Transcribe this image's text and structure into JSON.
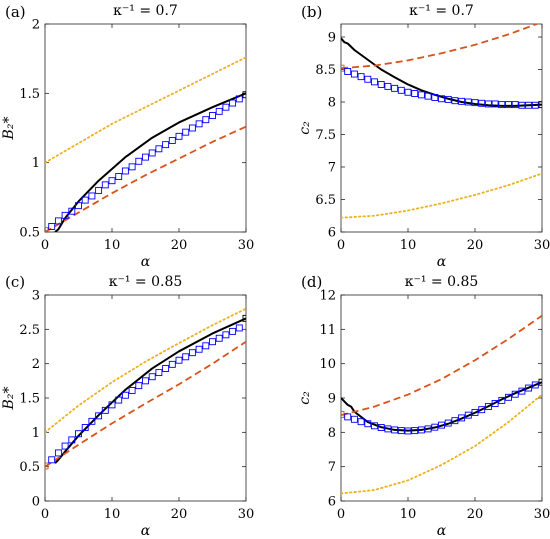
{
  "chart_data": [
    {
      "type": "line",
      "panel_label": "(a)",
      "title": "κ⁻¹ = 0.7",
      "xlabel": "α",
      "ylabel": "B₂*",
      "xlim": [
        0,
        30
      ],
      "ylim": [
        0.5,
        2
      ],
      "xticks": [
        0,
        10,
        20,
        30
      ],
      "yticks": [
        0.5,
        1,
        1.5,
        2
      ],
      "grid": false,
      "series": [
        {
          "style": "solid",
          "color": "#000000",
          "x": [
            1.5,
            2,
            3,
            5,
            8,
            12,
            16,
            20,
            25,
            30
          ],
          "y": [
            0.5,
            0.52,
            0.6,
            0.72,
            0.87,
            1.04,
            1.18,
            1.29,
            1.4,
            1.5
          ]
        },
        {
          "style": "dashed",
          "color": "#D95319",
          "x": [
            0,
            5,
            10,
            15,
            20,
            25,
            30
          ],
          "y": [
            0.5,
            0.64,
            0.78,
            0.91,
            1.03,
            1.15,
            1.26
          ]
        },
        {
          "style": "dotted",
          "color": "#EDB120",
          "x": [
            0,
            5,
            10,
            15,
            20,
            25,
            30
          ],
          "y": [
            1.0,
            1.14,
            1.28,
            1.4,
            1.52,
            1.64,
            1.76
          ]
        },
        {
          "style": "markers",
          "color": "#0000FF",
          "x": [
            0,
            1,
            2,
            3,
            4,
            5,
            6,
            7,
            8,
            9,
            10,
            11,
            12,
            13,
            14,
            15,
            16,
            17,
            18,
            19,
            20,
            21,
            22,
            23,
            24,
            25,
            26,
            27,
            28,
            29,
            30
          ],
          "y": [
            0.51,
            0.54,
            0.58,
            0.62,
            0.65,
            0.69,
            0.73,
            0.76,
            0.8,
            0.84,
            0.87,
            0.9,
            0.94,
            0.97,
            1.01,
            1.04,
            1.07,
            1.1,
            1.13,
            1.16,
            1.19,
            1.22,
            1.25,
            1.28,
            1.31,
            1.34,
            1.37,
            1.4,
            1.43,
            1.46,
            1.49
          ]
        }
      ]
    },
    {
      "type": "line",
      "panel_label": "(b)",
      "title": "κ⁻¹ = 0.7",
      "xlabel": "α",
      "ylabel": "c₂",
      "xlim": [
        0,
        30
      ],
      "ylim": [
        6,
        9.2
      ],
      "xticks": [
        0,
        10,
        20,
        30
      ],
      "yticks": [
        6,
        6.5,
        7,
        7.5,
        8,
        8.5,
        9
      ],
      "grid": false,
      "series": [
        {
          "style": "solid",
          "color": "#000000",
          "x": [
            0,
            0.5,
            1,
            1.5,
            2,
            4,
            6,
            8,
            10,
            12,
            14,
            16,
            18,
            20,
            22,
            24,
            26,
            28,
            30
          ],
          "y": [
            8.98,
            8.92,
            8.9,
            8.85,
            8.8,
            8.65,
            8.5,
            8.38,
            8.27,
            8.18,
            8.11,
            8.05,
            8.0,
            7.97,
            7.95,
            7.94,
            7.94,
            7.95,
            7.96
          ]
        },
        {
          "style": "dashed",
          "color": "#D95319",
          "x": [
            0,
            5,
            10,
            15,
            20,
            25,
            30
          ],
          "y": [
            8.52,
            8.56,
            8.64,
            8.75,
            8.88,
            9.04,
            9.23
          ]
        },
        {
          "style": "dotted",
          "color": "#EDB120",
          "x": [
            0,
            5,
            10,
            15,
            20,
            25,
            30
          ],
          "y": [
            6.22,
            6.25,
            6.33,
            6.44,
            6.57,
            6.72,
            6.9
          ]
        },
        {
          "style": "markers",
          "color": "#0000FF",
          "x": [
            0,
            1,
            2,
            3,
            4,
            5,
            6,
            7,
            8,
            9,
            10,
            11,
            12,
            13,
            14,
            15,
            16,
            17,
            18,
            19,
            20,
            21,
            22,
            23,
            24,
            25,
            26,
            27,
            28,
            29,
            30
          ],
          "y": [
            8.52,
            8.47,
            8.43,
            8.39,
            8.35,
            8.31,
            8.27,
            8.24,
            8.21,
            8.18,
            8.15,
            8.13,
            8.11,
            8.09,
            8.07,
            8.05,
            8.04,
            8.02,
            8.01,
            8.0,
            7.99,
            7.98,
            7.97,
            7.97,
            7.96,
            7.96,
            7.96,
            7.95,
            7.95,
            7.95,
            7.96
          ]
        }
      ]
    },
    {
      "type": "line",
      "panel_label": "(c)",
      "title": "κ⁻¹ = 0.85",
      "xlabel": "α",
      "ylabel": "B₂*",
      "xlim": [
        0,
        30
      ],
      "ylim": [
        0,
        3
      ],
      "xticks": [
        0,
        10,
        20,
        30
      ],
      "yticks": [
        0,
        0.5,
        1,
        1.5,
        2,
        2.5,
        3
      ],
      "grid": false,
      "series": [
        {
          "style": "solid",
          "color": "#000000",
          "x": [
            1.5,
            2,
            3,
            5,
            8,
            12,
            16,
            20,
            25,
            30
          ],
          "y": [
            0.55,
            0.6,
            0.72,
            0.95,
            1.25,
            1.62,
            1.93,
            2.18,
            2.44,
            2.66
          ]
        },
        {
          "style": "dashed",
          "color": "#D95319",
          "x": [
            0,
            5,
            10,
            15,
            20,
            25,
            30
          ],
          "y": [
            0.5,
            0.82,
            1.13,
            1.42,
            1.7,
            2.0,
            2.32
          ]
        },
        {
          "style": "dotted",
          "color": "#EDB120",
          "x": [
            0,
            5,
            10,
            15,
            20,
            25,
            30
          ],
          "y": [
            1.0,
            1.39,
            1.73,
            2.03,
            2.3,
            2.56,
            2.8
          ]
        },
        {
          "style": "markers",
          "color": "#0000FF",
          "x": [
            0,
            1,
            2,
            3,
            4,
            5,
            6,
            7,
            8,
            9,
            10,
            11,
            12,
            13,
            14,
            15,
            16,
            17,
            18,
            19,
            20,
            21,
            22,
            23,
            24,
            25,
            26,
            27,
            28,
            29,
            30
          ],
          "y": [
            0.51,
            0.6,
            0.7,
            0.8,
            0.89,
            0.98,
            1.07,
            1.16,
            1.24,
            1.32,
            1.4,
            1.47,
            1.54,
            1.61,
            1.68,
            1.75,
            1.81,
            1.87,
            1.93,
            1.99,
            2.05,
            2.1,
            2.16,
            2.21,
            2.26,
            2.32,
            2.37,
            2.42,
            2.47,
            2.52,
            2.66
          ]
        }
      ]
    },
    {
      "type": "line",
      "panel_label": "(d)",
      "title": "κ⁻¹ = 0.85",
      "xlabel": "α",
      "ylabel": "c₂",
      "xlim": [
        0,
        30
      ],
      "ylim": [
        6,
        12
      ],
      "xticks": [
        0,
        10,
        20,
        30
      ],
      "yticks": [
        6,
        7,
        8,
        9,
        10,
        11,
        12
      ],
      "grid": false,
      "series": [
        {
          "style": "solid",
          "color": "#000000",
          "x": [
            0,
            0.5,
            1,
            1.5,
            2,
            3,
            4,
            6,
            8,
            10,
            12,
            14,
            16,
            18,
            20,
            22,
            24,
            26,
            28,
            30
          ],
          "y": [
            9.0,
            8.9,
            8.8,
            8.75,
            8.6,
            8.45,
            8.3,
            8.15,
            8.07,
            8.05,
            8.07,
            8.14,
            8.25,
            8.4,
            8.57,
            8.76,
            8.96,
            9.14,
            9.3,
            9.46
          ]
        },
        {
          "style": "dashed",
          "color": "#D95319",
          "x": [
            0,
            5,
            10,
            15,
            20,
            25,
            30
          ],
          "y": [
            8.5,
            8.75,
            9.1,
            9.55,
            10.1,
            10.72,
            11.4
          ]
        },
        {
          "style": "dotted",
          "color": "#EDB120",
          "x": [
            0,
            5,
            10,
            15,
            20,
            25,
            30
          ],
          "y": [
            6.22,
            6.32,
            6.6,
            7.05,
            7.6,
            8.3,
            9.1
          ]
        },
        {
          "style": "markers",
          "color": "#0000FF",
          "x": [
            0,
            1,
            2,
            3,
            4,
            5,
            6,
            7,
            8,
            9,
            10,
            11,
            12,
            13,
            14,
            15,
            16,
            17,
            18,
            19,
            20,
            21,
            22,
            23,
            24,
            25,
            26,
            27,
            28,
            29,
            30
          ],
          "y": [
            8.52,
            8.45,
            8.38,
            8.31,
            8.25,
            8.19,
            8.14,
            8.1,
            8.07,
            8.05,
            8.04,
            8.05,
            8.07,
            8.1,
            8.15,
            8.21,
            8.27,
            8.34,
            8.42,
            8.5,
            8.58,
            8.66,
            8.75,
            8.84,
            8.93,
            9.02,
            9.11,
            9.2,
            9.29,
            9.38,
            9.46
          ]
        }
      ]
    }
  ]
}
